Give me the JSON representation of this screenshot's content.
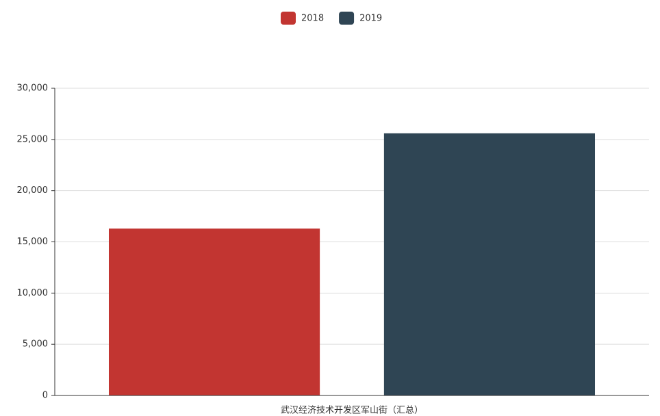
{
  "chart_data": {
    "type": "bar",
    "categories": [
      "武汉经济技术开发区军山街（汇总）"
    ],
    "series": [
      {
        "name": "2018",
        "color": "#c23531",
        "values": [
          16300
        ]
      },
      {
        "name": "2019",
        "color": "#2f4554",
        "values": [
          25600
        ]
      }
    ],
    "ylim": [
      0,
      30000
    ],
    "yticks": [
      0,
      {
        "value": 5000,
        "label": "5,000"
      },
      {
        "value": 10000,
        "label": "10,000"
      },
      {
        "value": 15000,
        "label": "15,000"
      },
      {
        "value": 20000,
        "label": "20,000"
      },
      {
        "value": 25000,
        "label": "25,000"
      },
      {
        "value": 30000,
        "label": "30,000"
      }
    ],
    "grid": true,
    "legend": "top"
  }
}
